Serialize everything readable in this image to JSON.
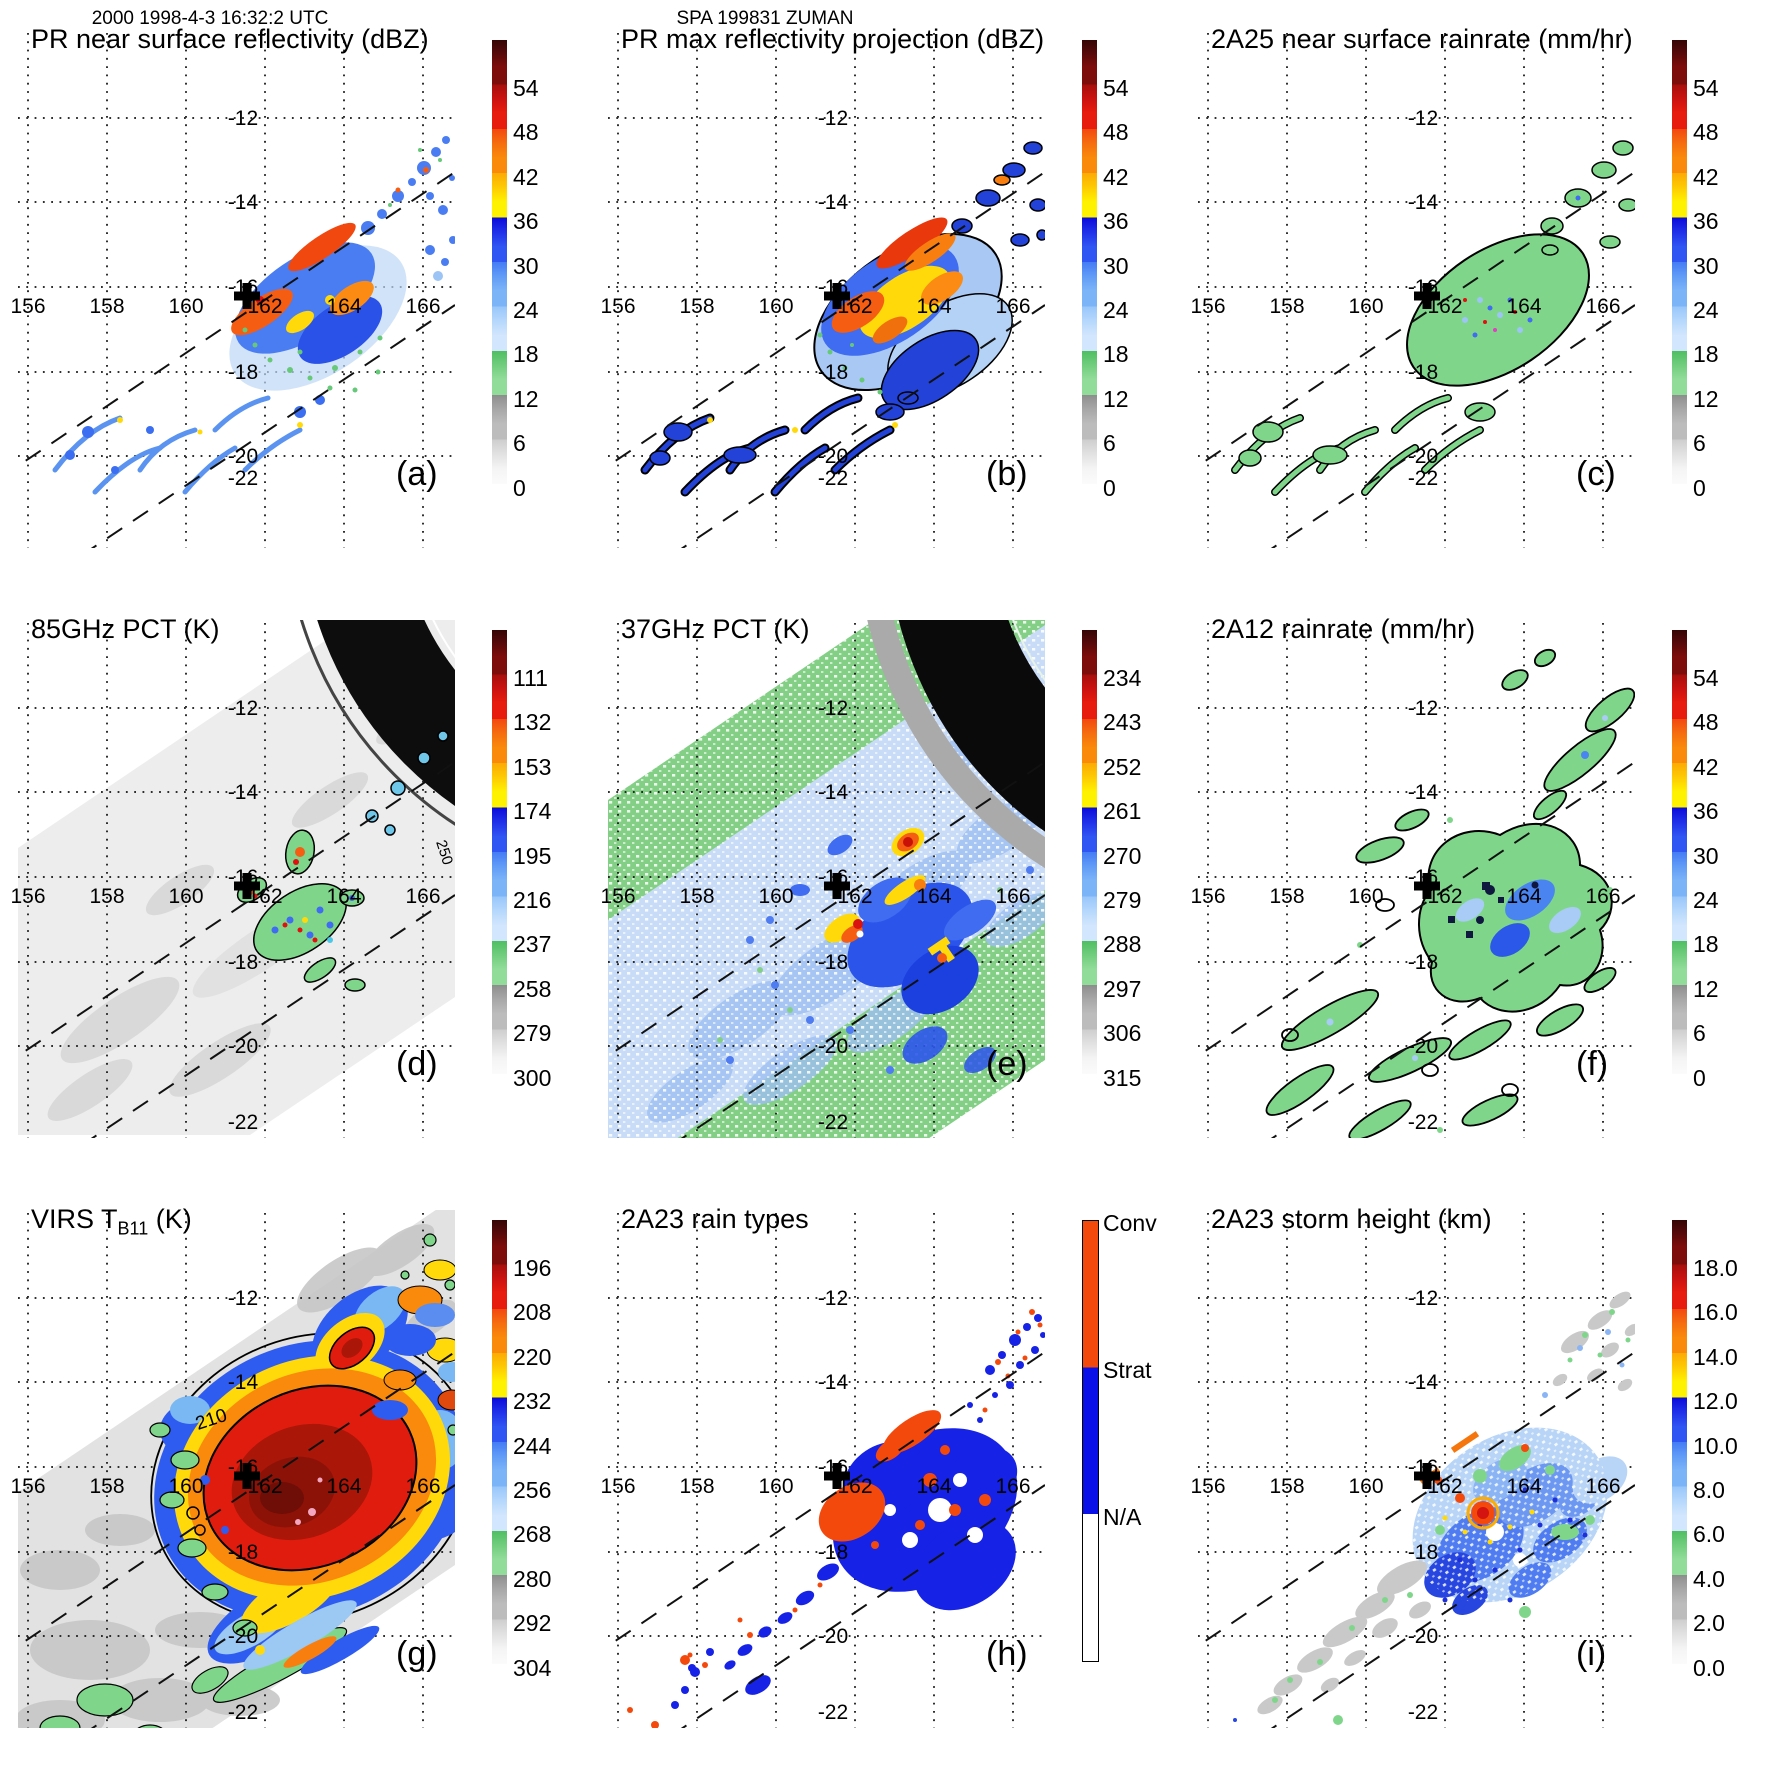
{
  "header": {
    "left": "2000 1998-4-3 16:32:2 UTC",
    "center": "SPA 199831 ZUMAN"
  },
  "axes": {
    "lon_labels": [
      "156",
      "158",
      "160",
      "162",
      "164",
      "166"
    ],
    "lat_labels": [
      "-12",
      "-14",
      "-16",
      "-18",
      "-20",
      "-22"
    ]
  },
  "colors": {
    "convective_red": "#f4490c",
    "stratiform_blue": "#0a10e8",
    "na_white": "#ffffff",
    "rain_green": "#7fd68b",
    "heavy_rain_blue": "#2f55f2",
    "extreme_yellow": "#fef200",
    "extreme_red": "#e81c0e",
    "cold_maroon": "#350606",
    "swath_gray": "#ededed"
  },
  "panels": [
    {
      "letter": "(a)",
      "title": "PR near surface reflectivity (dBZ)",
      "colorbar_type": "standard",
      "colorbar_labels": [
        "54",
        "48",
        "42",
        "36",
        "30",
        "24",
        "18",
        "12",
        "6",
        "0"
      ]
    },
    {
      "letter": "(b)",
      "title": "PR max reflectivity projection (dBZ)",
      "colorbar_type": "standard",
      "colorbar_labels": [
        "54",
        "48",
        "42",
        "36",
        "30",
        "24",
        "18",
        "12",
        "6",
        "0"
      ]
    },
    {
      "letter": "(c)",
      "title": "2A25 near surface rainrate (mm/hr)",
      "colorbar_type": "standard",
      "colorbar_labels": [
        "54",
        "48",
        "42",
        "36",
        "30",
        "24",
        "18",
        "12",
        "6",
        "0"
      ]
    },
    {
      "letter": "(d)",
      "title": "85GHz PCT (K)",
      "colorbar_type": "standard",
      "colorbar_labels": [
        "111",
        "132",
        "153",
        "174",
        "195",
        "216",
        "237",
        "258",
        "279",
        "300"
      ],
      "contour_label": "250"
    },
    {
      "letter": "(e)",
      "title": "37GHz PCT (K)",
      "colorbar_type": "standard",
      "colorbar_labels": [
        "234",
        "243",
        "252",
        "261",
        "270",
        "279",
        "288",
        "297",
        "306",
        "315"
      ]
    },
    {
      "letter": "(f)",
      "title": "2A12 rainrate (mm/hr)",
      "colorbar_type": "standard",
      "colorbar_labels": [
        "54",
        "48",
        "42",
        "36",
        "30",
        "24",
        "18",
        "12",
        "6",
        "0"
      ]
    },
    {
      "letter": "(g)",
      "title_pre": "VIRS T",
      "title_sub": "B11",
      "title_post": " (K)",
      "colorbar_type": "standard",
      "colorbar_labels": [
        "196",
        "208",
        "220",
        "232",
        "244",
        "256",
        "268",
        "280",
        "292",
        "304"
      ],
      "contour_label": "210"
    },
    {
      "letter": "(h)",
      "title": "2A23 rain types",
      "colorbar_type": "raintype",
      "colorbar_labels": [
        "Conv",
        "Strat",
        "N/A"
      ]
    },
    {
      "letter": "(i)",
      "title": "2A23 storm height (km)",
      "colorbar_type": "standard",
      "colorbar_labels": [
        "18.0",
        "16.0",
        "14.0",
        "12.0",
        "10.0",
        "8.0",
        "6.0",
        "4.0",
        "2.0",
        "0.0"
      ]
    }
  ],
  "chart_data": [
    {
      "panel": "a",
      "type": "heatmap",
      "title": "PR near surface reflectivity (dBZ)",
      "units": "dBZ",
      "colorbar_ticks": [
        54,
        48,
        42,
        36,
        30,
        24,
        18,
        12,
        6,
        0
      ],
      "lon_ticks": [
        156,
        158,
        160,
        162,
        164,
        166
      ],
      "lat_ticks": [
        -12,
        -14,
        -16,
        -18,
        -20,
        -22
      ],
      "storm_center_lon": 161.3,
      "storm_center_lat": -16.2,
      "notes": "Narrow PR swath between dashed lines; 42-54 dBZ convective cores near 162-164E, 16-18S with 18-36 dBZ rainbands trailing southwest"
    },
    {
      "panel": "b",
      "type": "heatmap",
      "title": "PR max reflectivity projection (dBZ)",
      "units": "dBZ",
      "colorbar_ticks": [
        54,
        48,
        42,
        36,
        30,
        24,
        18,
        12,
        6,
        0
      ],
      "lon_ticks": [
        156,
        158,
        160,
        162,
        164,
        166
      ],
      "lat_ticks": [
        -12,
        -14,
        -16,
        -18,
        -20,
        -22
      ],
      "storm_center_lon": 161.3,
      "storm_center_lat": -16.2,
      "notes": "Black-outlined echo region with broad 36-48 dBZ yellow/orange area near storm center"
    },
    {
      "panel": "c",
      "type": "heatmap",
      "title": "2A25 near surface rainrate (mm/hr)",
      "units": "mm/hr",
      "colorbar_ticks": [
        54,
        48,
        42,
        36,
        30,
        24,
        18,
        12,
        6,
        0
      ],
      "lon_ticks": [
        156,
        158,
        160,
        162,
        164,
        166
      ],
      "lat_ticks": [
        -12,
        -14,
        -16,
        -18,
        -20,
        -22
      ],
      "storm_center_lon": 161.3,
      "storm_center_lat": -16.2,
      "notes": "Mostly 0-6 mm/hr green outlined rain area with embedded blue/red pixels"
    },
    {
      "panel": "d",
      "type": "heatmap",
      "title": "85GHz PCT (K)",
      "units": "K",
      "colorbar_ticks": [
        111,
        132,
        153,
        174,
        195,
        216,
        237,
        258,
        279,
        300
      ],
      "lon_ticks": [
        156,
        158,
        160,
        162,
        164,
        166
      ],
      "lat_ticks": [
        -12,
        -14,
        -16,
        -18,
        -20,
        -22
      ],
      "storm_center_lon": 161.3,
      "storm_center_lat": -16.2,
      "notes": "Wide TMI swath, warm ~290K gray background, cold 111-216K ice-scattering cores near center, black no-data arc top right, 250K contour"
    },
    {
      "panel": "e",
      "type": "heatmap",
      "title": "37GHz PCT (K)",
      "units": "K",
      "colorbar_ticks": [
        234,
        243,
        252,
        261,
        270,
        279,
        288,
        297,
        306,
        315
      ],
      "lon_ticks": [
        156,
        158,
        160,
        162,
        164,
        166
      ],
      "lat_ticks": [
        -12,
        -14,
        -16,
        -18,
        -20,
        -22
      ],
      "storm_center_lon": 161.3,
      "storm_center_lat": -16.2,
      "notes": "Green ~290K ocean background, pale-blue 279-288K band, dark blue 261-270K and yellow/red 234-252K cores near center, black no-data arc top right"
    },
    {
      "panel": "f",
      "type": "heatmap",
      "title": "2A12 rainrate (mm/hr)",
      "units": "mm/hr",
      "colorbar_ticks": [
        54,
        48,
        42,
        36,
        30,
        24,
        18,
        12,
        6,
        0
      ],
      "lon_ticks": [
        156,
        158,
        160,
        162,
        164,
        166
      ],
      "lat_ticks": [
        -12,
        -14,
        -16,
        -18,
        -20,
        -22
      ],
      "storm_center_lon": 161.3,
      "storm_center_lat": -16.2,
      "notes": "Green 0-6 mm/hr spiral rainbands with blue 12-30 mm/hr patches near center"
    },
    {
      "panel": "g",
      "type": "heatmap",
      "title": "VIRS TB11 (K)",
      "units": "K",
      "colorbar_ticks": [
        196,
        208,
        220,
        232,
        244,
        256,
        268,
        280,
        292,
        304
      ],
      "lon_ticks": [
        156,
        158,
        160,
        162,
        164,
        166
      ],
      "lat_ticks": [
        -12,
        -14,
        -16,
        -18,
        -20,
        -22
      ],
      "storm_center_lon": 161.3,
      "storm_center_lat": -16.2,
      "notes": "Large cold cloud shield: dark-red <200K core ringed by red, orange, yellow, blue to ~260K, 210K contour labeled; gray warm ocean background"
    },
    {
      "panel": "h",
      "type": "heatmap",
      "title": "2A23 rain types",
      "categories": [
        "Conv",
        "Strat",
        "N/A"
      ],
      "lon_ticks": [
        156,
        158,
        160,
        162,
        164,
        166
      ],
      "lat_ticks": [
        -12,
        -14,
        -16,
        -18,
        -20,
        -22
      ],
      "storm_center_lon": 161.3,
      "storm_center_lat": -16.2,
      "notes": "Stratiform (blue) dominates with embedded convective (orange) cells along PR swath"
    },
    {
      "panel": "i",
      "type": "heatmap",
      "title": "2A23 storm height (km)",
      "units": "km",
      "colorbar_ticks": [
        18,
        16,
        14,
        12,
        10,
        8,
        6,
        4,
        2,
        0
      ],
      "lon_ticks": [
        156,
        158,
        160,
        162,
        164,
        166
      ],
      "lat_ticks": [
        -12,
        -14,
        -16,
        -18,
        -20,
        -22
      ],
      "storm_center_lon": 161.3,
      "storm_center_lat": -16.2,
      "notes": "Storm heights mostly 6-10 km (blue) near center with 14-16 km (orange/red) tower, 2-4 km gray echoes southwest"
    }
  ]
}
